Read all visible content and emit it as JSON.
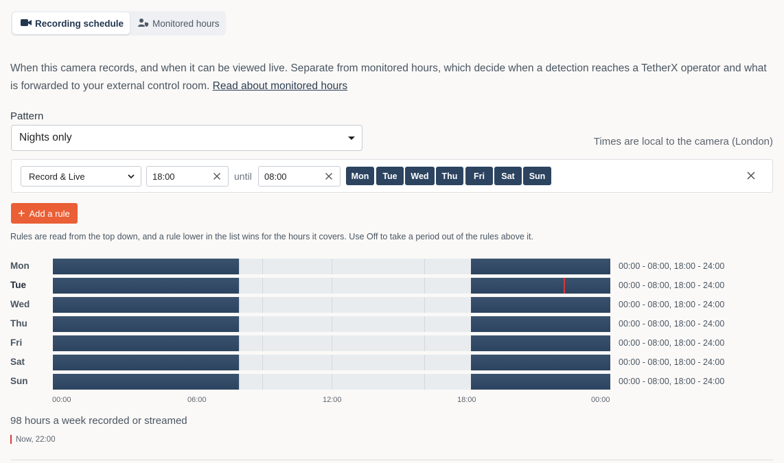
{
  "tabs": {
    "recording": {
      "label": "Recording schedule",
      "icon": "video-camera-icon"
    },
    "monitored": {
      "label": "Monitored hours",
      "icon": "person-shield-icon"
    }
  },
  "description": {
    "text": "When this camera records, and when it can be viewed live. Separate from monitored hours, which decide when a detection reaches a TetherX operator and what is forwarded to your external control room. ",
    "link": "Read about monitored hours"
  },
  "pattern": {
    "label": "Pattern",
    "value": "Nights only"
  },
  "timezone_note": "Times are local to the camera (London)",
  "rule": {
    "mode": "Record & Live",
    "from": "18:00",
    "until_label": "until",
    "to": "08:00",
    "days": [
      "Mon",
      "Tue",
      "Wed",
      "Thu",
      "Fri",
      "Sat",
      "Sun"
    ]
  },
  "add_rule_label": "Add a rule",
  "rules_note": "Rules are read from the top down, and a rule lower in the list wins for the hours it covers. Use Off to take a period out of the rules above it.",
  "schedule": {
    "rows": [
      {
        "day": "Mon",
        "summary": "00:00 - 08:00, 18:00 - 24:00",
        "today": false
      },
      {
        "day": "Tue",
        "summary": "00:00 - 08:00, 18:00 - 24:00",
        "today": true
      },
      {
        "day": "Wed",
        "summary": "00:00 - 08:00, 18:00 - 24:00",
        "today": false
      },
      {
        "day": "Thu",
        "summary": "00:00 - 08:00, 18:00 - 24:00",
        "today": false
      },
      {
        "day": "Fri",
        "summary": "00:00 - 08:00, 18:00 - 24:00",
        "today": false
      },
      {
        "day": "Sat",
        "summary": "00:00 - 08:00, 18:00 - 24:00",
        "today": false
      },
      {
        "day": "Sun",
        "summary": "00:00 - 08:00, 18:00 - 24:00",
        "today": false
      }
    ],
    "segments": [
      [
        0,
        8
      ],
      [
        18,
        24
      ]
    ],
    "now_hour": 22,
    "axis_ticks": [
      "00:00",
      "06:00",
      "12:00",
      "18:00",
      "00:00"
    ]
  },
  "total": "98 hours a week recorded or streamed",
  "now_legend": "Now, 22:00",
  "colors": {
    "accent": "#ea5f35",
    "recording": "#2c4460",
    "now": "#d73838"
  }
}
